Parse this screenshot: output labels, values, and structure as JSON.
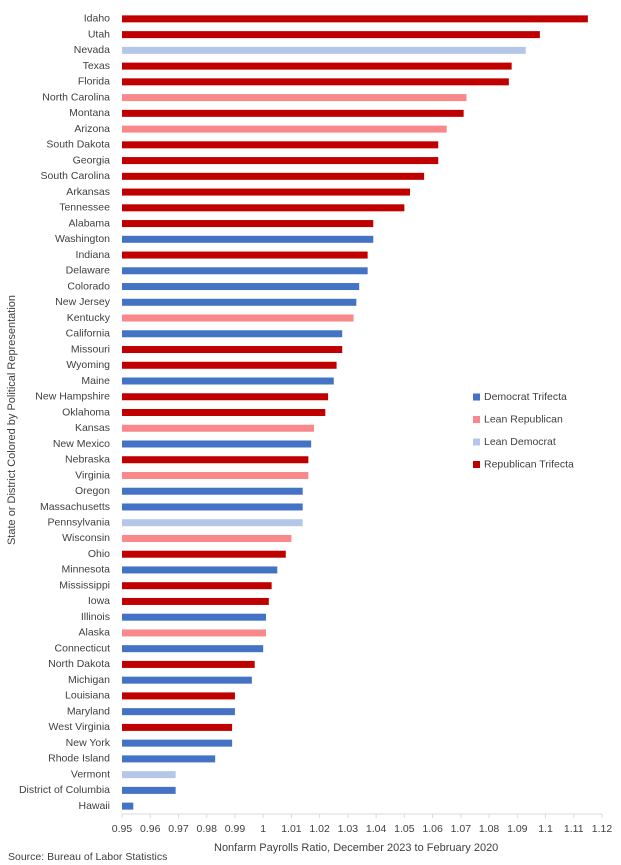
{
  "chart_data": {
    "type": "hbar",
    "x_label": "Nonfarm Payrolls Ratio, December 2023 to February 2020",
    "y_label": "State or District Colored by Political Representation",
    "source": "Source: Bureau of Labor Statistics",
    "categories": [
      "Idaho",
      "Utah",
      "Nevada",
      "Texas",
      "Florida",
      "North Carolina",
      "Montana",
      "Arizona",
      "South Dakota",
      "Georgia",
      "South Carolina",
      "Arkansas",
      "Tennessee",
      "Alabama",
      "Washington",
      "Indiana",
      "Delaware",
      "Colorado",
      "New Jersey",
      "Kentucky",
      "California",
      "Missouri",
      "Wyoming",
      "Maine",
      "New Hampshire",
      "Oklahoma",
      "Kansas",
      "New Mexico",
      "Nebraska",
      "Virginia",
      "Oregon",
      "Massachusetts",
      "Pennsylvania",
      "Wisconsin",
      "Ohio",
      "Minnesota",
      "Mississippi",
      "Iowa",
      "Illinois",
      "Alaska",
      "Connecticut",
      "North Dakota",
      "Michigan",
      "Louisiana",
      "Maryland",
      "West Virginia",
      "New York",
      "Rhode Island",
      "Vermont",
      "District of Columbia",
      "Hawaii"
    ],
    "series": [
      {
        "name": "Democrat Trifecta",
        "color": "#4472c4",
        "values": [
          null,
          null,
          null,
          null,
          null,
          null,
          null,
          null,
          null,
          null,
          null,
          null,
          null,
          null,
          1.039,
          null,
          1.037,
          1.034,
          1.033,
          null,
          1.028,
          null,
          null,
          1.025,
          null,
          null,
          null,
          1.017,
          null,
          null,
          1.014,
          1.014,
          null,
          null,
          null,
          1.005,
          null,
          null,
          1.001,
          null,
          1.0,
          null,
          0.996,
          null,
          0.99,
          null,
          0.989,
          0.983,
          null,
          0.969,
          0.954
        ]
      },
      {
        "name": "Lean Republican",
        "color": "#f8888a",
        "values": [
          null,
          null,
          null,
          null,
          null,
          1.072,
          null,
          1.065,
          null,
          null,
          null,
          null,
          null,
          null,
          null,
          null,
          null,
          null,
          null,
          1.032,
          null,
          null,
          null,
          null,
          null,
          null,
          1.018,
          null,
          null,
          1.016,
          null,
          null,
          null,
          1.01,
          null,
          null,
          null,
          null,
          null,
          1.001,
          null,
          null,
          null,
          null,
          null,
          null,
          null,
          null,
          null,
          null,
          null
        ]
      },
      {
        "name": "Lean Democrat",
        "color": "#b4c7e7",
        "values": [
          null,
          null,
          1.093,
          null,
          null,
          null,
          null,
          null,
          null,
          null,
          null,
          null,
          null,
          null,
          null,
          null,
          null,
          null,
          null,
          null,
          null,
          null,
          null,
          null,
          null,
          null,
          null,
          null,
          null,
          null,
          null,
          null,
          1.014,
          null,
          null,
          null,
          null,
          null,
          null,
          null,
          null,
          null,
          null,
          null,
          null,
          null,
          null,
          null,
          0.969,
          null,
          null
        ]
      },
      {
        "name": "Republican Trifecta",
        "color": "#c00000",
        "values": [
          1.115,
          1.098,
          null,
          1.088,
          1.087,
          null,
          1.071,
          null,
          1.062,
          1.062,
          1.057,
          1.052,
          1.05,
          1.039,
          null,
          1.037,
          null,
          null,
          null,
          null,
          null,
          1.028,
          1.026,
          null,
          1.023,
          1.022,
          null,
          null,
          1.016,
          null,
          null,
          null,
          null,
          null,
          1.008,
          null,
          1.003,
          1.002,
          null,
          null,
          null,
          0.997,
          null,
          0.99,
          null,
          0.989,
          null,
          null,
          null,
          null,
          null
        ]
      }
    ],
    "xlim": [
      0.95,
      1.12
    ],
    "xticks": [
      0.95,
      0.96,
      0.97,
      0.98,
      0.99,
      1,
      1.01,
      1.02,
      1.03,
      1.04,
      1.05,
      1.06,
      1.07,
      1.08,
      1.09,
      1.1,
      1.11,
      1.12
    ],
    "legend": "right"
  }
}
